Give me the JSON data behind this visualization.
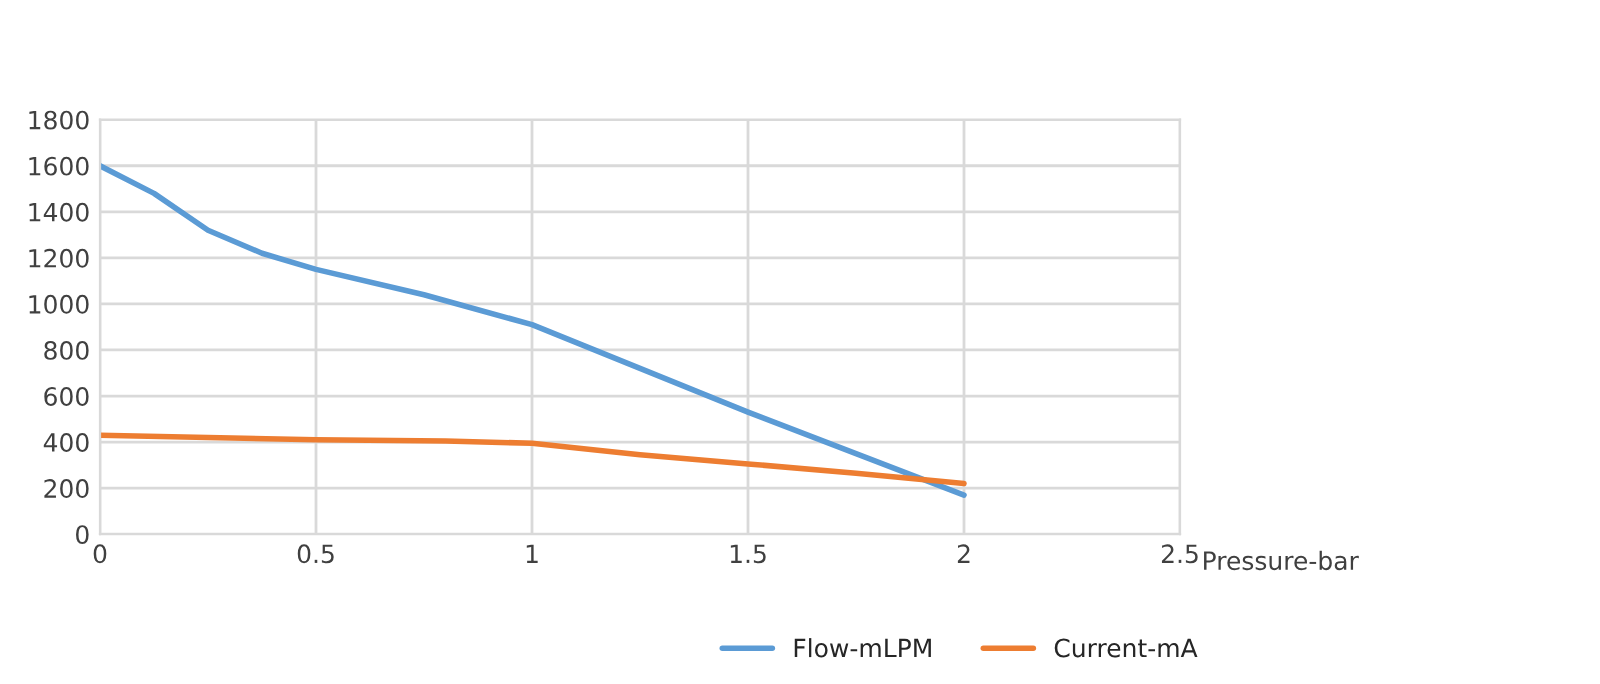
{
  "chart_data": {
    "type": "line",
    "xlabel": "Pressure-bar",
    "xlim": [
      0,
      2.5
    ],
    "xticks": [
      0,
      0.5,
      1,
      1.5,
      2,
      2.5
    ],
    "ylim": [
      0,
      1800
    ],
    "yticks": [
      0,
      200,
      400,
      600,
      800,
      1000,
      1200,
      1400,
      1600,
      1800
    ],
    "grid": true,
    "legend": "bottom",
    "series": [
      {
        "name": "Flow-mLPM",
        "color": "#5b9bd5",
        "x": [
          0,
          0.125,
          0.25,
          0.375,
          0.5,
          0.75,
          1,
          1.25,
          1.5,
          1.75,
          2
        ],
        "values": [
          1600,
          1480,
          1320,
          1220,
          1150,
          1040,
          910,
          720,
          530,
          350,
          170
        ]
      },
      {
        "name": "Current-mA",
        "color": "#ed7d31",
        "x": [
          0,
          0.5,
          0.8,
          1,
          1.25,
          1.5,
          1.75,
          2
        ],
        "values": [
          430,
          410,
          405,
          395,
          345,
          305,
          265,
          220
        ]
      }
    ]
  }
}
